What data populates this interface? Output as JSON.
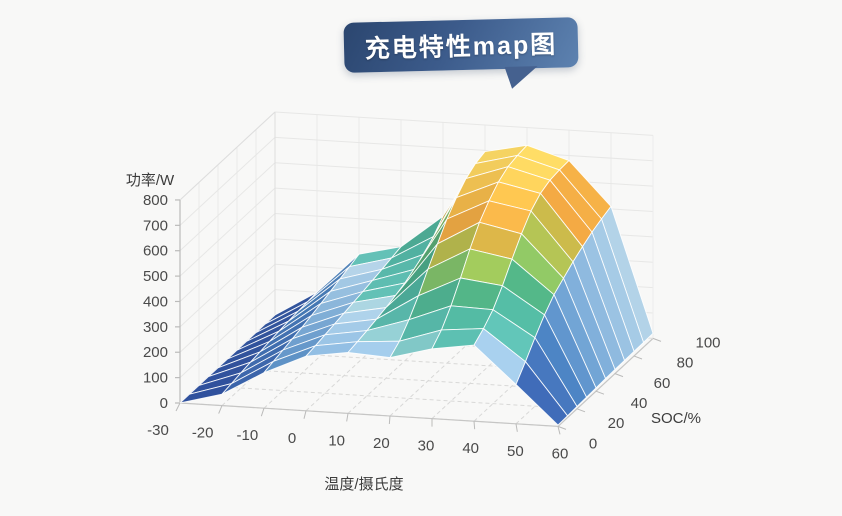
{
  "page": {
    "background": "#f8f8f7"
  },
  "banner": {
    "title": "充电特性map图",
    "text_color": "#ffffff",
    "bg_from": "#2b466f",
    "bg_to": "#5d82b0"
  },
  "chart_data": {
    "type": "surface",
    "title": "充电特性map图",
    "grid": true,
    "legend_position": "none",
    "xlabel": "温度/摄氏度",
    "ylabel": "SOC/%",
    "zlabel": "功率/W",
    "x_ticks": [
      -30,
      -20,
      -10,
      0,
      10,
      20,
      30,
      40,
      50,
      60
    ],
    "y_ticks": [
      0,
      20,
      40,
      60,
      80,
      100
    ],
    "z_ticks": [
      0,
      100,
      200,
      300,
      400,
      500,
      600,
      700,
      800
    ],
    "zlim": [
      0,
      800
    ],
    "temperature_values": [
      -30,
      -20,
      -10,
      0,
      10,
      20,
      30,
      40,
      50,
      60
    ],
    "soc_values": [
      0,
      10,
      20,
      30,
      40,
      50,
      60,
      70,
      80,
      90,
      100
    ],
    "power_matrix": [
      [
        0,
        0,
        0,
        0,
        0,
        0,
        0,
        0,
        0,
        0,
        0
      ],
      [
        45,
        52,
        60,
        67,
        73,
        79,
        85,
        90,
        94,
        97,
        100
      ],
      [
        140,
        150,
        160,
        170,
        180,
        192,
        205,
        218,
        232,
        246,
        260
      ],
      [
        215,
        222,
        230,
        238,
        246,
        254,
        262,
        271,
        280,
        290,
        300
      ],
      [
        240,
        248,
        257,
        267,
        278,
        291,
        306,
        325,
        350,
        385,
        430
      ],
      [
        230,
        260,
        310,
        370,
        440,
        505,
        568,
        618,
        658,
        683,
        695
      ],
      [
        275,
        315,
        375,
        450,
        530,
        600,
        650,
        690,
        715,
        725,
        730
      ],
      [
        300,
        330,
        370,
        430,
        500,
        565,
        620,
        655,
        672,
        678,
        680
      ],
      [
        155,
        210,
        270,
        325,
        370,
        400,
        430,
        455,
        478,
        495,
        510
      ],
      [
        5,
        7,
        9,
        11,
        13,
        15,
        16,
        17,
        18,
        19,
        20
      ]
    ],
    "color_stops": [
      [
        0,
        "#2d4b99"
      ],
      [
        90,
        "#3e68b4"
      ],
      [
        160,
        "#4f88c7"
      ],
      [
        215,
        "#82b2dd"
      ],
      [
        255,
        "#abd0ea"
      ],
      [
        266,
        "#bfdcee"
      ],
      [
        272,
        "#66c4ba"
      ],
      [
        335,
        "#53b9a7"
      ],
      [
        405,
        "#50b286"
      ],
      [
        470,
        "#9bc95d"
      ],
      [
        540,
        "#c9b84a"
      ],
      [
        565,
        "#f0a843"
      ],
      [
        655,
        "#f5c04e"
      ],
      [
        720,
        "#f8da68"
      ],
      [
        800,
        "#fbeb8d"
      ]
    ],
    "tick_color": "#4a4a4a",
    "mesh_line_color": "#ffffff"
  }
}
